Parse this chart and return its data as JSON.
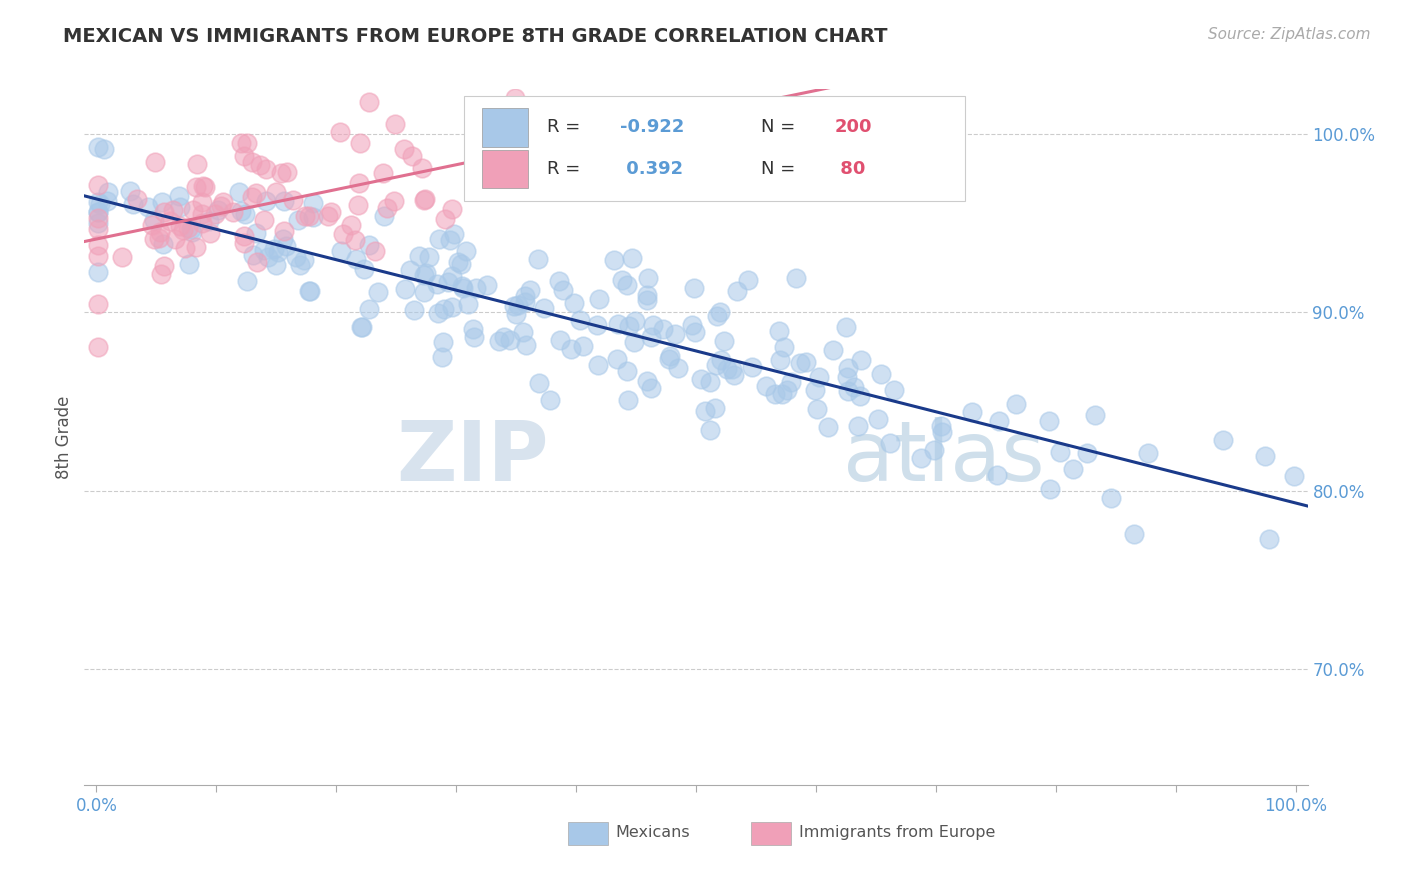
{
  "title": "MEXICAN VS IMMIGRANTS FROM EUROPE 8TH GRADE CORRELATION CHART",
  "source": "Source: ZipAtlas.com",
  "ylabel": "8th Grade",
  "right_yticks": [
    70.0,
    80.0,
    90.0,
    100.0
  ],
  "blue_color": "#a8c8e8",
  "pink_color": "#f0a0b8",
  "blue_line_color": "#1a3a8a",
  "pink_line_color": "#e07090",
  "n_blue": 200,
  "n_pink": 80,
  "r_blue": -0.922,
  "r_pink": 0.392,
  "figsize": [
    14.06,
    8.92
  ],
  "dpi": 100,
  "watermark_zip": "ZIP",
  "watermark_atlas": "atlas",
  "legend_r1": "R = -0.922",
  "legend_n1": "200",
  "legend_r2": "R =  0.392",
  "legend_n2": " 80"
}
